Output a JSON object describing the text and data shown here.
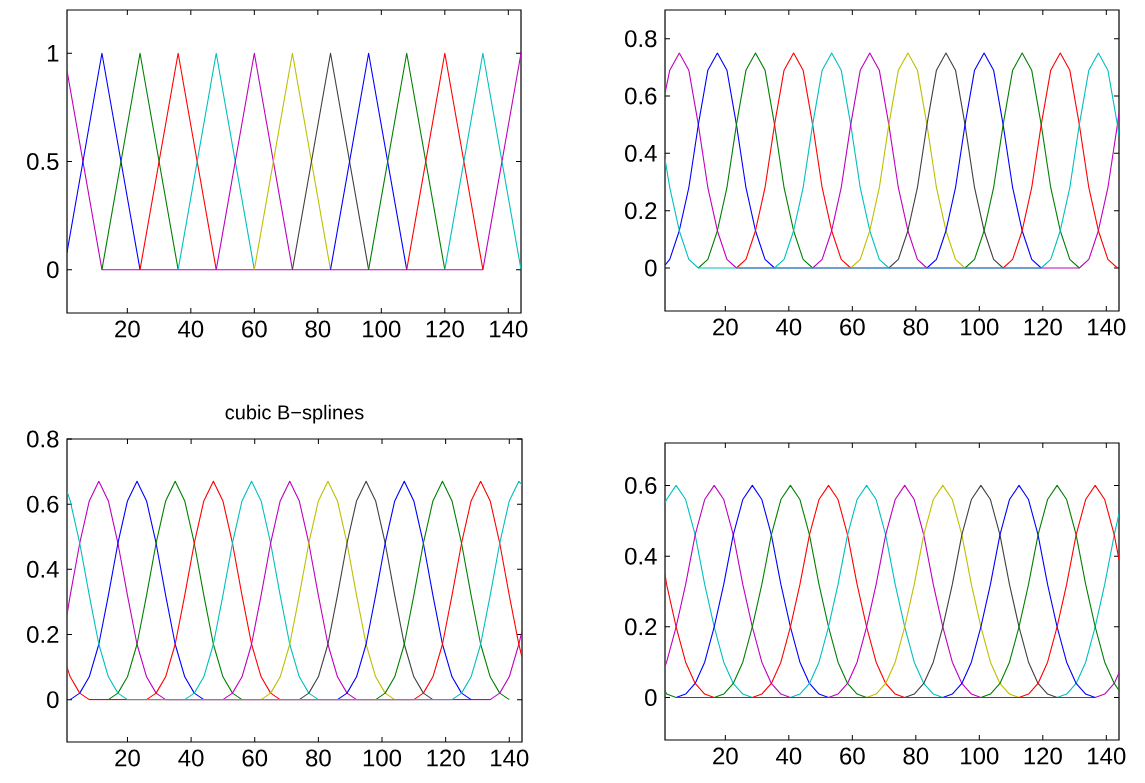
{
  "chart_data": [
    {
      "type": "line",
      "xlim": [
        1,
        144
      ],
      "xticks": [
        20,
        40,
        60,
        80,
        100,
        120,
        140
      ],
      "ylim": [
        -0.2,
        1.2
      ],
      "yticks": [
        0,
        0.5,
        1
      ],
      "series": [
        {
          "color": "#bf00bf",
          "x": [
            1,
            12,
            132,
            144
          ],
          "values": [
            0.92,
            0,
            0,
            1
          ]
        },
        {
          "color": "#0000ff",
          "x": [
            1,
            12,
            24
          ],
          "values": [
            0.08,
            1,
            0
          ]
        },
        {
          "color": "#008000",
          "x": [
            12,
            24,
            36
          ],
          "values": [
            0,
            1,
            0
          ]
        },
        {
          "color": "#ff0000",
          "x": [
            24,
            36,
            48
          ],
          "values": [
            0,
            1,
            0
          ]
        },
        {
          "color": "#00bfbf",
          "x": [
            36,
            48,
            60
          ],
          "values": [
            0,
            1,
            0
          ]
        },
        {
          "color": "#bf00bf",
          "x": [
            48,
            60,
            72
          ],
          "values": [
            0,
            1,
            0
          ]
        },
        {
          "color": "#bfbf00",
          "x": [
            60,
            72,
            84
          ],
          "values": [
            0,
            1,
            0
          ]
        },
        {
          "color": "#404040",
          "x": [
            72,
            84,
            96
          ],
          "values": [
            0,
            1,
            0
          ]
        },
        {
          "color": "#0000ff",
          "x": [
            84,
            96,
            108
          ],
          "values": [
            0,
            1,
            0
          ]
        },
        {
          "color": "#008000",
          "x": [
            96,
            108,
            120
          ],
          "values": [
            0,
            1,
            0
          ]
        },
        {
          "color": "#ff0000",
          "x": [
            108,
            120,
            132
          ],
          "values": [
            0,
            1,
            0
          ]
        },
        {
          "color": "#00bfbf",
          "x": [
            120,
            132,
            144
          ],
          "values": [
            0,
            1,
            0
          ]
        }
      ]
    },
    {
      "type": "line",
      "xlim": [
        1,
        144
      ],
      "xticks": [
        20,
        40,
        60,
        80,
        100,
        120,
        140
      ],
      "ylim": [
        -0.15,
        0.9
      ],
      "yticks": [
        0,
        0.2,
        0.4,
        0.6,
        0.8
      ],
      "series": [
        {
          "color": "#bf00bf",
          "x": [
            1,
            2.5,
            5.5,
            8.5,
            11.5,
            14.5,
            17.5,
            20.5,
            23.5,
            131.5,
            134.5,
            137.5,
            140.5,
            143.5,
            144
          ],
          "values": [
            0.61,
            0.69,
            0.75,
            0.69,
            0.5,
            0.28,
            0.13,
            0.03,
            0,
            0,
            0.03,
            0.13,
            0.28,
            0.5,
            0.54
          ]
        },
        {
          "color": "#0000ff",
          "x": [
            1,
            2.5,
            5.5,
            8.5,
            11.5,
            14.5,
            17.5,
            20.5,
            23.5,
            26.5,
            29.5,
            32.5,
            35.5
          ],
          "values": [
            0.01,
            0.03,
            0.13,
            0.28,
            0.5,
            0.69,
            0.75,
            0.69,
            0.5,
            0.28,
            0.13,
            0.03,
            0
          ]
        },
        {
          "color": "#008000",
          "x": [
            11.5,
            14.5,
            17.5,
            20.5,
            23.5,
            26.5,
            29.5,
            32.5,
            35.5,
            38.5,
            41.5,
            44.5,
            47.5
          ],
          "values": [
            0,
            0.03,
            0.13,
            0.28,
            0.5,
            0.69,
            0.75,
            0.69,
            0.5,
            0.28,
            0.13,
            0.03,
            0
          ]
        },
        {
          "color": "#ff0000",
          "x": [
            23.5,
            26.5,
            29.5,
            32.5,
            35.5,
            38.5,
            41.5,
            44.5,
            47.5,
            50.5,
            53.5,
            56.5,
            59.5
          ],
          "values": [
            0,
            0.03,
            0.13,
            0.28,
            0.5,
            0.69,
            0.75,
            0.69,
            0.5,
            0.28,
            0.13,
            0.03,
            0
          ]
        },
        {
          "color": "#00bfbf",
          "x": [
            35.5,
            38.5,
            41.5,
            44.5,
            47.5,
            50.5,
            53.5,
            56.5,
            59.5,
            62.5,
            65.5,
            68.5,
            71.5
          ],
          "values": [
            0,
            0.03,
            0.13,
            0.28,
            0.5,
            0.69,
            0.75,
            0.69,
            0.5,
            0.28,
            0.13,
            0.03,
            0
          ]
        },
        {
          "color": "#bf00bf",
          "x": [
            47.5,
            50.5,
            53.5,
            56.5,
            59.5,
            62.5,
            65.5,
            68.5,
            71.5,
            74.5,
            77.5,
            80.5,
            83.5
          ],
          "values": [
            0,
            0.03,
            0.13,
            0.28,
            0.5,
            0.69,
            0.75,
            0.69,
            0.5,
            0.28,
            0.13,
            0.03,
            0
          ]
        },
        {
          "color": "#bfbf00",
          "x": [
            59.5,
            62.5,
            65.5,
            68.5,
            71.5,
            74.5,
            77.5,
            80.5,
            83.5,
            86.5,
            89.5,
            92.5,
            95.5
          ],
          "values": [
            0,
            0.03,
            0.13,
            0.28,
            0.5,
            0.69,
            0.75,
            0.69,
            0.5,
            0.28,
            0.13,
            0.03,
            0
          ]
        },
        {
          "color": "#404040",
          "x": [
            71.5,
            74.5,
            77.5,
            80.5,
            83.5,
            86.5,
            89.5,
            92.5,
            95.5,
            98.5,
            101.5,
            104.5,
            107.5
          ],
          "values": [
            0,
            0.03,
            0.13,
            0.28,
            0.5,
            0.69,
            0.75,
            0.69,
            0.5,
            0.28,
            0.13,
            0.03,
            0
          ]
        },
        {
          "color": "#0000ff",
          "x": [
            83.5,
            86.5,
            89.5,
            92.5,
            95.5,
            98.5,
            101.5,
            104.5,
            107.5,
            110.5,
            113.5,
            116.5,
            119.5
          ],
          "values": [
            0,
            0.03,
            0.13,
            0.28,
            0.5,
            0.69,
            0.75,
            0.69,
            0.5,
            0.28,
            0.13,
            0.03,
            0
          ]
        },
        {
          "color": "#008000",
          "x": [
            95.5,
            98.5,
            101.5,
            104.5,
            107.5,
            110.5,
            113.5,
            116.5,
            119.5,
            122.5,
            125.5,
            128.5,
            131.5
          ],
          "values": [
            0,
            0.03,
            0.13,
            0.28,
            0.5,
            0.69,
            0.75,
            0.69,
            0.5,
            0.28,
            0.13,
            0.03,
            0
          ]
        },
        {
          "color": "#ff0000",
          "x": [
            107.5,
            110.5,
            113.5,
            116.5,
            119.5,
            122.5,
            125.5,
            128.5,
            131.5,
            134.5,
            137.5,
            140.5,
            143.5
          ],
          "values": [
            0,
            0.03,
            0.13,
            0.28,
            0.5,
            0.69,
            0.75,
            0.69,
            0.5,
            0.28,
            0.13,
            0.03,
            0
          ]
        },
        {
          "color": "#00bfbf",
          "x": [
            1,
            2.5,
            5.5,
            8.5,
            11.5,
            119.5,
            122.5,
            125.5,
            128.5,
            131.5,
            134.5,
            137.5,
            140.5,
            143.5,
            144
          ],
          "values": [
            0.38,
            0.28,
            0.13,
            0.03,
            0,
            0,
            0.03,
            0.13,
            0.28,
            0.5,
            0.69,
            0.75,
            0.69,
            0.5,
            0.46
          ]
        }
      ]
    },
    {
      "type": "line",
      "title": "cubic B−splines",
      "xlim": [
        1,
        144
      ],
      "xticks": [
        20,
        40,
        60,
        80,
        100,
        120,
        140
      ],
      "ylim": [
        -0.13,
        0.8
      ],
      "yticks": [
        0,
        0.2,
        0.4,
        0.6,
        0.8
      ],
      "series": [
        {
          "color": "#bf00bf",
          "x": [
            1,
            2,
            5,
            8,
            11,
            14,
            17,
            20,
            23,
            26,
            29,
            32,
            134,
            137,
            140,
            143,
            144
          ],
          "values": [
            0.26,
            0.32,
            0.48,
            0.61,
            0.67,
            0.61,
            0.48,
            0.32,
            0.17,
            0.07,
            0.02,
            0,
            0,
            0.02,
            0.07,
            0.17,
            0.21
          ]
        },
        {
          "color": "#0000ff",
          "x": [
            2,
            5,
            8,
            11,
            14,
            17,
            20,
            23,
            26,
            29,
            32,
            35,
            38,
            41,
            44
          ],
          "values": [
            0,
            0.02,
            0.07,
            0.17,
            0.32,
            0.48,
            0.61,
            0.67,
            0.61,
            0.48,
            0.32,
            0.17,
            0.07,
            0.02,
            0
          ]
        },
        {
          "color": "#008000",
          "x": [
            14,
            17,
            20,
            23,
            26,
            29,
            32,
            35,
            38,
            41,
            44,
            47,
            50,
            53,
            56
          ],
          "values": [
            0,
            0.02,
            0.07,
            0.17,
            0.32,
            0.48,
            0.61,
            0.67,
            0.61,
            0.48,
            0.32,
            0.17,
            0.07,
            0.02,
            0
          ]
        },
        {
          "color": "#ff0000",
          "x": [
            26,
            29,
            32,
            35,
            38,
            41,
            44,
            47,
            50,
            53,
            56,
            59,
            62,
            65,
            68
          ],
          "values": [
            0,
            0.02,
            0.07,
            0.17,
            0.32,
            0.48,
            0.61,
            0.67,
            0.61,
            0.48,
            0.32,
            0.17,
            0.07,
            0.02,
            0
          ]
        },
        {
          "color": "#00bfbf",
          "x": [
            38,
            41,
            44,
            47,
            50,
            53,
            56,
            59,
            62,
            65,
            68,
            71,
            74,
            77,
            80
          ],
          "values": [
            0,
            0.02,
            0.07,
            0.17,
            0.32,
            0.48,
            0.61,
            0.67,
            0.61,
            0.48,
            0.32,
            0.17,
            0.07,
            0.02,
            0
          ]
        },
        {
          "color": "#bf00bf",
          "x": [
            50,
            53,
            56,
            59,
            62,
            65,
            68,
            71,
            74,
            77,
            80,
            83,
            86,
            89,
            92
          ],
          "values": [
            0,
            0.02,
            0.07,
            0.17,
            0.32,
            0.48,
            0.61,
            0.67,
            0.61,
            0.48,
            0.32,
            0.17,
            0.07,
            0.02,
            0
          ]
        },
        {
          "color": "#bfbf00",
          "x": [
            62,
            65,
            68,
            71,
            74,
            77,
            80,
            83,
            86,
            89,
            92,
            95,
            98,
            101,
            104
          ],
          "values": [
            0,
            0.02,
            0.07,
            0.17,
            0.32,
            0.48,
            0.61,
            0.67,
            0.61,
            0.48,
            0.32,
            0.17,
            0.07,
            0.02,
            0
          ]
        },
        {
          "color": "#404040",
          "x": [
            74,
            77,
            80,
            83,
            86,
            89,
            92,
            95,
            98,
            101,
            104,
            107,
            110,
            113,
            116
          ],
          "values": [
            0,
            0.02,
            0.07,
            0.17,
            0.32,
            0.48,
            0.61,
            0.67,
            0.61,
            0.48,
            0.32,
            0.17,
            0.07,
            0.02,
            0
          ]
        },
        {
          "color": "#0000ff",
          "x": [
            86,
            89,
            92,
            95,
            98,
            101,
            104,
            107,
            110,
            113,
            116,
            119,
            122,
            125,
            128
          ],
          "values": [
            0,
            0.02,
            0.07,
            0.17,
            0.32,
            0.48,
            0.61,
            0.67,
            0.61,
            0.48,
            0.32,
            0.17,
            0.07,
            0.02,
            0
          ]
        },
        {
          "color": "#008000",
          "x": [
            98,
            101,
            104,
            107,
            110,
            113,
            116,
            119,
            122,
            125,
            128,
            131,
            134,
            137,
            140
          ],
          "values": [
            0,
            0.02,
            0.07,
            0.17,
            0.32,
            0.48,
            0.61,
            0.67,
            0.61,
            0.48,
            0.32,
            0.17,
            0.07,
            0.02,
            0
          ]
        },
        {
          "color": "#ff0000",
          "x": [
            1,
            2,
            5,
            8,
            110,
            113,
            116,
            119,
            122,
            125,
            128,
            131,
            134,
            137,
            140,
            143,
            144
          ],
          "values": [
            0.1,
            0.07,
            0.02,
            0,
            0,
            0.02,
            0.07,
            0.17,
            0.32,
            0.48,
            0.61,
            0.67,
            0.61,
            0.48,
            0.32,
            0.17,
            0.13
          ]
        },
        {
          "color": "#00bfbf",
          "x": [
            1,
            2,
            5,
            8,
            11,
            14,
            17,
            20,
            122,
            125,
            128,
            131,
            134,
            137,
            140,
            143,
            144
          ],
          "values": [
            0.64,
            0.61,
            0.48,
            0.32,
            0.17,
            0.07,
            0.02,
            0,
            0,
            0.02,
            0.07,
            0.17,
            0.32,
            0.48,
            0.61,
            0.67,
            0.66
          ]
        }
      ]
    },
    {
      "type": "line",
      "xlim": [
        1,
        144
      ],
      "xticks": [
        20,
        40,
        60,
        80,
        100,
        120,
        140
      ],
      "ylim": [
        -0.12,
        0.72
      ],
      "yticks": [
        0,
        0.2,
        0.4,
        0.6
      ],
      "series": [
        {
          "color": "#00bfbf",
          "x": [
            1,
            1.5,
            4.5,
            7.5,
            10.5,
            13.5,
            16.5,
            19.5,
            22.5,
            25.5,
            28.5,
            124.5,
            127.5,
            130.5,
            133.5,
            136.5,
            139.5,
            142.5,
            144
          ],
          "values": [
            0.55,
            0.56,
            0.6,
            0.56,
            0.46,
            0.32,
            0.2,
            0.1,
            0.04,
            0.01,
            0,
            0,
            0.01,
            0.04,
            0.1,
            0.2,
            0.32,
            0.46,
            0.52
          ]
        },
        {
          "color": "#bf00bf",
          "x": [
            1,
            1.5,
            4.5,
            7.5,
            10.5,
            13.5,
            16.5,
            19.5,
            22.5,
            25.5,
            28.5,
            31.5,
            34.5,
            37.5,
            40.5,
            136.5,
            139.5,
            142.5,
            144
          ],
          "values": [
            0.09,
            0.1,
            0.2,
            0.32,
            0.46,
            0.56,
            0.6,
            0.56,
            0.46,
            0.32,
            0.2,
            0.1,
            0.04,
            0.01,
            0,
            0,
            0.01,
            0.04,
            0.07
          ]
        },
        {
          "color": "#0000ff",
          "x": [
            4.5,
            7.5,
            10.5,
            13.5,
            16.5,
            19.5,
            22.5,
            25.5,
            28.5,
            31.5,
            34.5,
            37.5,
            40.5,
            43.5,
            46.5,
            49.5,
            52.5
          ],
          "values": [
            0,
            0.01,
            0.04,
            0.1,
            0.2,
            0.32,
            0.46,
            0.56,
            0.6,
            0.56,
            0.46,
            0.32,
            0.2,
            0.1,
            0.04,
            0.01,
            0
          ]
        },
        {
          "color": "#008000",
          "x": [
            16.5,
            19.5,
            22.5,
            25.5,
            28.5,
            31.5,
            34.5,
            37.5,
            40.5,
            43.5,
            46.5,
            49.5,
            52.5,
            55.5,
            58.5,
            61.5,
            64.5
          ],
          "values": [
            0,
            0.01,
            0.04,
            0.1,
            0.2,
            0.32,
            0.46,
            0.56,
            0.6,
            0.56,
            0.46,
            0.32,
            0.2,
            0.1,
            0.04,
            0.01,
            0
          ]
        },
        {
          "color": "#ff0000",
          "x": [
            28.5,
            31.5,
            34.5,
            37.5,
            40.5,
            43.5,
            46.5,
            49.5,
            52.5,
            55.5,
            58.5,
            61.5,
            64.5,
            67.5,
            70.5,
            73.5,
            76.5
          ],
          "values": [
            0,
            0.01,
            0.04,
            0.1,
            0.2,
            0.32,
            0.46,
            0.56,
            0.6,
            0.56,
            0.46,
            0.32,
            0.2,
            0.1,
            0.04,
            0.01,
            0
          ]
        },
        {
          "color": "#00bfbf",
          "x": [
            40.5,
            43.5,
            46.5,
            49.5,
            52.5,
            55.5,
            58.5,
            61.5,
            64.5,
            67.5,
            70.5,
            73.5,
            76.5,
            79.5,
            82.5,
            85.5,
            88.5
          ],
          "values": [
            0,
            0.01,
            0.04,
            0.1,
            0.2,
            0.32,
            0.46,
            0.56,
            0.6,
            0.56,
            0.46,
            0.32,
            0.2,
            0.1,
            0.04,
            0.01,
            0
          ]
        },
        {
          "color": "#bf00bf",
          "x": [
            52.5,
            55.5,
            58.5,
            61.5,
            64.5,
            67.5,
            70.5,
            73.5,
            76.5,
            79.5,
            82.5,
            85.5,
            88.5,
            91.5,
            94.5,
            97.5,
            100.5
          ],
          "values": [
            0,
            0.01,
            0.04,
            0.1,
            0.2,
            0.32,
            0.46,
            0.56,
            0.6,
            0.56,
            0.46,
            0.32,
            0.2,
            0.1,
            0.04,
            0.01,
            0
          ]
        },
        {
          "color": "#bfbf00",
          "x": [
            64.5,
            67.5,
            70.5,
            73.5,
            76.5,
            79.5,
            82.5,
            85.5,
            88.5,
            91.5,
            94.5,
            97.5,
            100.5,
            103.5,
            106.5,
            109.5,
            112.5
          ],
          "values": [
            0,
            0.01,
            0.04,
            0.1,
            0.2,
            0.32,
            0.46,
            0.56,
            0.6,
            0.56,
            0.46,
            0.32,
            0.2,
            0.1,
            0.04,
            0.01,
            0
          ]
        },
        {
          "color": "#404040",
          "x": [
            76.5,
            79.5,
            82.5,
            85.5,
            88.5,
            91.5,
            94.5,
            97.5,
            100.5,
            103.5,
            106.5,
            109.5,
            112.5,
            115.5,
            118.5,
            121.5,
            124.5
          ],
          "values": [
            0,
            0.01,
            0.04,
            0.1,
            0.2,
            0.32,
            0.46,
            0.56,
            0.6,
            0.56,
            0.46,
            0.32,
            0.2,
            0.1,
            0.04,
            0.01,
            0
          ]
        },
        {
          "color": "#0000ff",
          "x": [
            88.5,
            91.5,
            94.5,
            97.5,
            100.5,
            103.5,
            106.5,
            109.5,
            112.5,
            115.5,
            118.5,
            121.5,
            124.5,
            127.5,
            130.5,
            133.5,
            136.5
          ],
          "values": [
            0,
            0.01,
            0.04,
            0.1,
            0.2,
            0.32,
            0.46,
            0.56,
            0.6,
            0.56,
            0.46,
            0.32,
            0.2,
            0.1,
            0.04,
            0.01,
            0
          ]
        },
        {
          "color": "#008000",
          "x": [
            1,
            1.5,
            4.5,
            100.5,
            103.5,
            106.5,
            109.5,
            112.5,
            115.5,
            118.5,
            121.5,
            124.5,
            127.5,
            130.5,
            133.5,
            136.5,
            139.5,
            142.5,
            144
          ],
          "values": [
            0.02,
            0.01,
            0,
            0,
            0.01,
            0.04,
            0.1,
            0.2,
            0.32,
            0.46,
            0.56,
            0.6,
            0.56,
            0.46,
            0.32,
            0.2,
            0.1,
            0.04,
            0.02
          ]
        },
        {
          "color": "#ff0000",
          "x": [
            1,
            1.5,
            4.5,
            7.5,
            10.5,
            13.5,
            16.5,
            112.5,
            115.5,
            118.5,
            121.5,
            124.5,
            127.5,
            130.5,
            133.5,
            136.5,
            139.5,
            142.5,
            144
          ],
          "values": [
            0.35,
            0.32,
            0.2,
            0.1,
            0.04,
            0.01,
            0,
            0,
            0.01,
            0.04,
            0.1,
            0.2,
            0.32,
            0.46,
            0.56,
            0.6,
            0.56,
            0.46,
            0.39
          ]
        }
      ]
    }
  ]
}
